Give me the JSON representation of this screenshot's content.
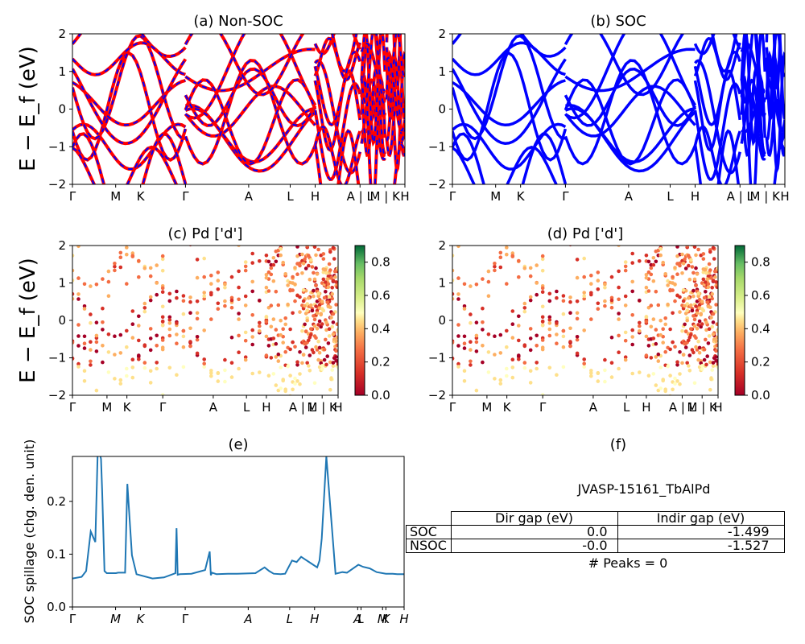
{
  "colors": {
    "nonsoc_a": "#ff0000",
    "nonsoc_b": "#0000ff",
    "soc": "#0000ff",
    "spillage": "#1f77b4"
  },
  "kpath": {
    "labels": [
      "Γ",
      "M",
      "K",
      "Γ",
      "A",
      "L",
      "H",
      "A | L",
      "M | K",
      "H"
    ],
    "positions": [
      0.0,
      0.13,
      0.205,
      0.34,
      0.53,
      0.655,
      0.73,
      0.865,
      0.94,
      1.0
    ]
  },
  "spillage_kpath": {
    "labels": [
      "Γ",
      "M",
      "K",
      "Γ",
      "A",
      "L",
      "H",
      "A",
      "L",
      "M",
      "K",
      "H"
    ],
    "positions": [
      0.0,
      0.13,
      0.205,
      0.34,
      0.53,
      0.655,
      0.73,
      0.86,
      0.87,
      0.935,
      0.945,
      1.0
    ]
  },
  "chart_data": [
    {
      "type": "line",
      "title": "(a) Non-SOC",
      "ylabel": "E − E_f (eV)",
      "ylim": [
        -2,
        2
      ],
      "yticks": [
        "−2",
        "−1",
        "0",
        "1",
        "2"
      ],
      "style": "red/blue dashed bands"
    },
    {
      "type": "line",
      "title": "(b) SOC",
      "ylim": [
        -2,
        2
      ],
      "yticks": [
        "−2",
        "−1",
        "0",
        "1",
        "2"
      ],
      "style": "blue bands"
    },
    {
      "type": "scatter",
      "title": "(c)  Pd ['d']",
      "ylabel": "E − E_f (eV)",
      "ylim": [
        -2,
        2
      ],
      "yticks": [
        "−2",
        "−1",
        "0",
        "1",
        "2"
      ],
      "colorbar": {
        "range": [
          0.0,
          0.9
        ],
        "ticks": [
          "0.0",
          "0.2",
          "0.4",
          "0.6",
          "0.8"
        ],
        "colormap": "RdYlGn"
      }
    },
    {
      "type": "scatter",
      "title": "(d) Pd ['d']",
      "ylim": [
        -2,
        2
      ],
      "yticks": [
        "−2",
        "−1",
        "0",
        "1",
        "2"
      ],
      "colorbar": {
        "range": [
          0.0,
          0.9
        ],
        "ticks": [
          "0.0",
          "0.2",
          "0.4",
          "0.6",
          "0.8"
        ],
        "colormap": "RdYlGn"
      }
    },
    {
      "type": "line",
      "title": "(e)",
      "ylabel": "SOC spillage (chg. den. unit)",
      "ylim": [
        0.0,
        0.285
      ],
      "yticks": [
        "0.0",
        "0.1",
        "0.2"
      ],
      "x": [
        0.0,
        0.04,
        0.06,
        0.08,
        0.1,
        0.11,
        0.12,
        0.125,
        0.13,
        0.14,
        0.15,
        0.19,
        0.2,
        0.23,
        0.24,
        0.26,
        0.28,
        0.35,
        0.4,
        0.45,
        0.455,
        0.46,
        0.47,
        0.52,
        0.58,
        0.6,
        0.605,
        0.61,
        0.63,
        0.68,
        0.7,
        0.72,
        0.8,
        0.84,
        0.86,
        0.88,
        0.91,
        0.93,
        0.96,
        0.98,
        1.0,
        1.07,
        1.08,
        1.09,
        1.11,
        1.15,
        1.18,
        1.2,
        1.25,
        1.27,
        1.3,
        1.33,
        1.37,
        1.4,
        1.42,
        1.45
      ],
      "values": [
        0.054,
        0.057,
        0.068,
        0.143,
        0.123,
        0.29,
        0.29,
        0.28,
        0.22,
        0.068,
        0.064,
        0.064,
        0.065,
        0.065,
        0.233,
        0.098,
        0.062,
        0.054,
        0.056,
        0.064,
        0.149,
        0.061,
        0.062,
        0.063,
        0.07,
        0.105,
        0.06,
        0.065,
        0.062,
        0.063,
        0.063,
        0.063,
        0.064,
        0.075,
        0.068,
        0.063,
        0.062,
        0.063,
        0.088,
        0.085,
        0.095,
        0.075,
        0.088,
        0.13,
        0.285,
        0.063,
        0.066,
        0.065,
        0.08,
        0.076,
        0.073,
        0.066,
        0.063,
        0.063,
        0.062,
        0.062
      ],
      "xlim": [
        0.0,
        1.45
      ]
    }
  ],
  "table": {
    "title": "(f)",
    "subtitle": "JVASP-15161_TbAlPd",
    "headers": [
      "",
      "Dir gap (eV)",
      "Indir gap (eV)"
    ],
    "rows": [
      [
        "SOC",
        "0.0",
        "-1.499"
      ],
      [
        "NSOC",
        "-0.0",
        "-1.527"
      ]
    ],
    "footer": "# Peaks = 0"
  }
}
